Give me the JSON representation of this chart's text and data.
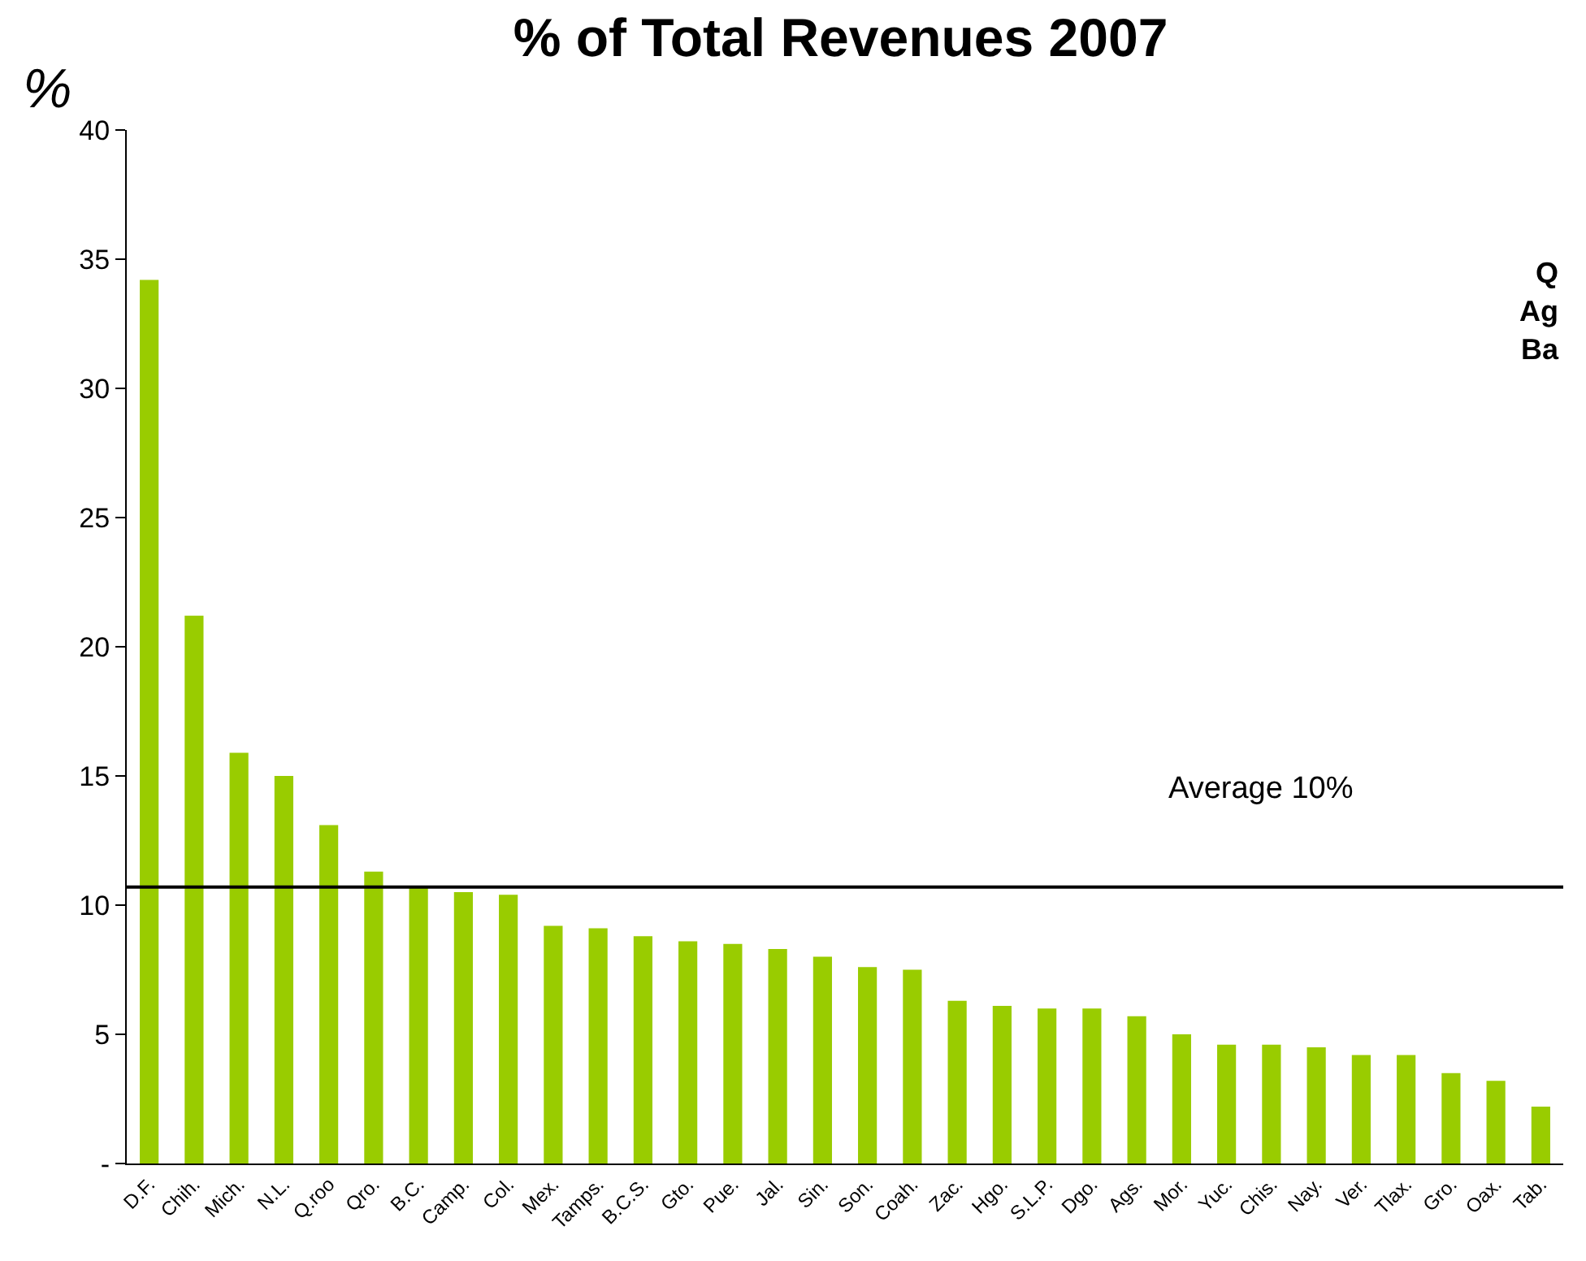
{
  "chart_data": {
    "type": "bar",
    "title": "% of Total Revenues 2007",
    "ylabel": "%",
    "categories": [
      "D.F.",
      "Chih.",
      "Mich.",
      "N.L.",
      "Q.roo",
      "Qro.",
      "B.C.",
      "Camp.",
      "Col.",
      "Mex.",
      "Tamps.",
      "B.C.S.",
      "Gto.",
      "Pue.",
      "Jal.",
      "Sin.",
      "Son.",
      "Coah.",
      "Zac.",
      "Hgo.",
      "S.L.P.",
      "Dgo.",
      "Ags.",
      "Mor.",
      "Yuc.",
      "Chis.",
      "Nay.",
      "Ver.",
      "Tlax.",
      "Gro.",
      "Oax.",
      "Tab."
    ],
    "values": [
      34.2,
      21.2,
      15.9,
      15.0,
      13.1,
      11.3,
      10.7,
      10.5,
      10.4,
      9.2,
      9.1,
      8.8,
      8.6,
      8.5,
      8.3,
      8.0,
      7.6,
      7.5,
      6.3,
      6.1,
      6.0,
      6.0,
      5.7,
      5.0,
      4.6,
      4.6,
      4.5,
      4.2,
      4.2,
      3.5,
      3.2,
      2.2
    ],
    "color": "#99cc00",
    "ylim": [
      0,
      40
    ],
    "yticks": [
      {
        "value": 0,
        "label": "-"
      },
      5,
      10,
      15,
      20,
      25,
      30,
      35,
      40
    ],
    "ref_lines": [
      {
        "axis": "y",
        "value": 10.7,
        "label": "Average 10%",
        "color": "#000000"
      }
    ],
    "annotations": [
      "Q\nAg\nBa"
    ],
    "legend": false
  }
}
